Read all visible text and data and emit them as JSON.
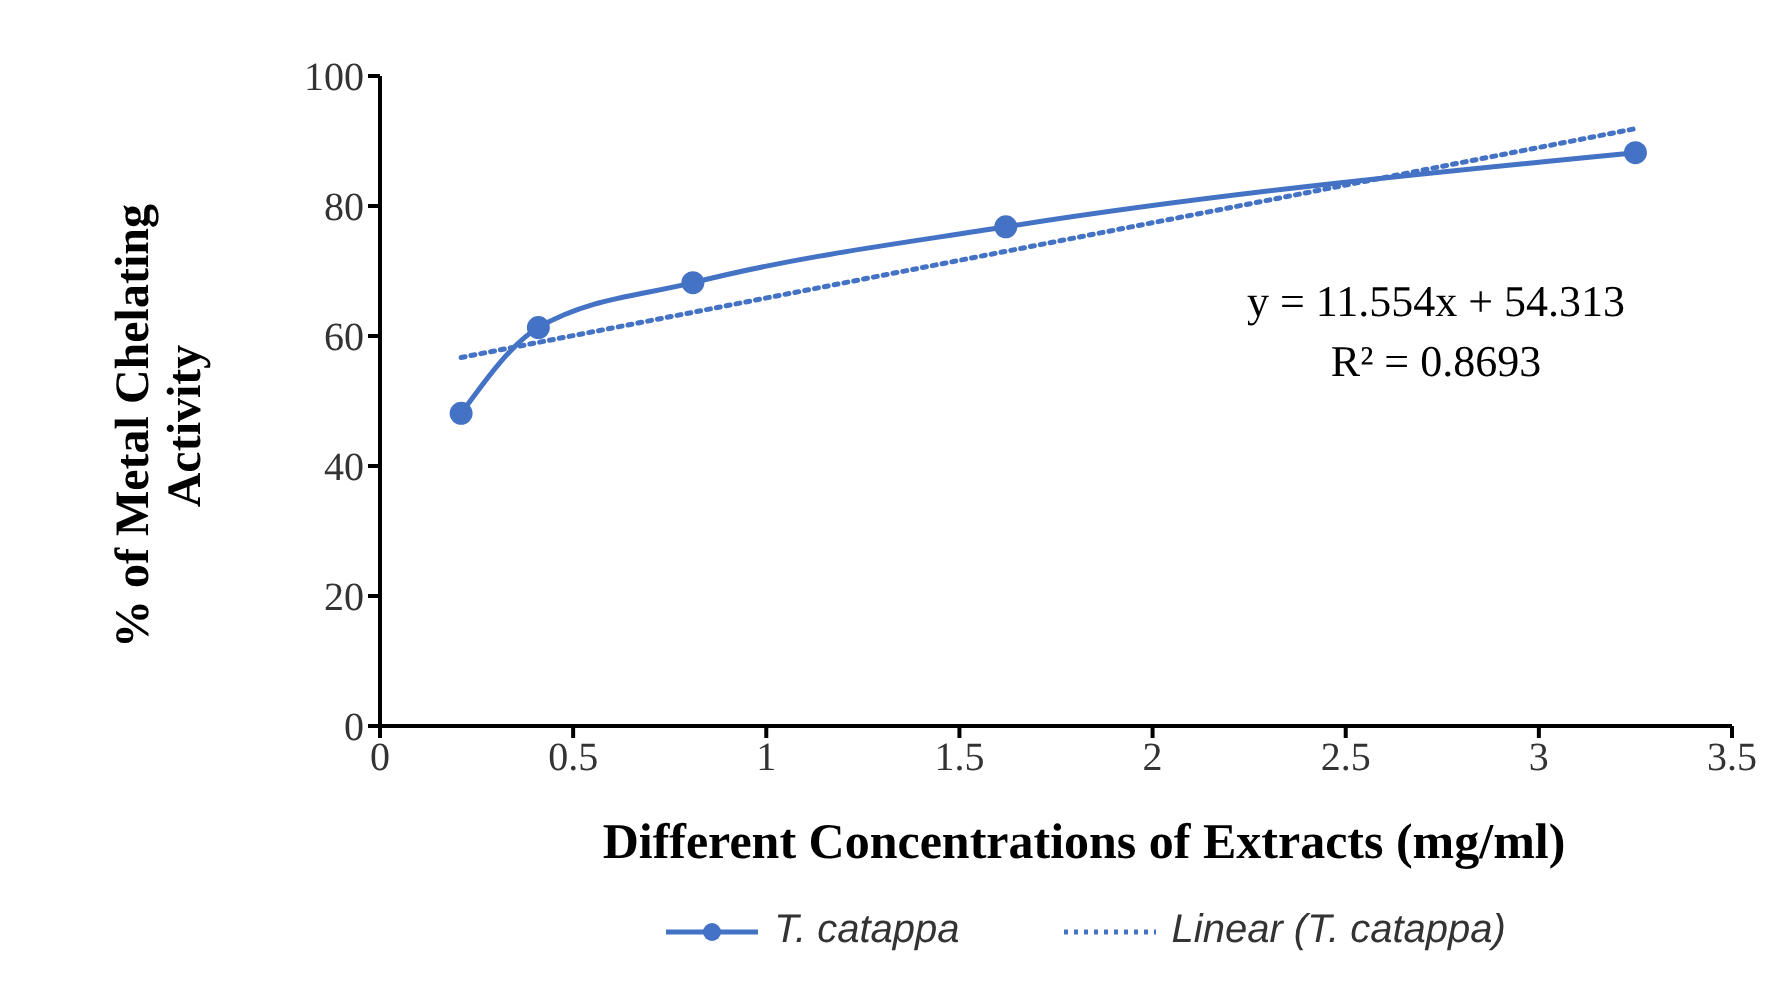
{
  "chart_data": {
    "type": "line",
    "xlabel": "Different Concentrations of Extracts (mg/ml)",
    "ylabel": "% of Metal Chelating Activity",
    "xlim": [
      0,
      3.5
    ],
    "xticks": [
      0,
      0.5,
      1,
      1.5,
      2,
      2.5,
      3,
      3.5
    ],
    "ylim": [
      0,
      100
    ],
    "yticks": [
      0,
      20,
      40,
      60,
      80,
      100
    ],
    "legend": "bottom",
    "series": [
      {
        "name": "T. catappa",
        "color": "#4472c4",
        "x": [
          0.21,
          0.41,
          0.81,
          1.62,
          3.25
        ],
        "values": [
          48.1,
          61.3,
          68.2,
          76.8,
          88.2
        ],
        "marker": "circle",
        "line_style": "solid"
      },
      {
        "name": "Linear (T. catappa)",
        "color": "#4472c4",
        "x": [
          0.21,
          3.25
        ],
        "values": [
          56.7,
          91.9
        ],
        "marker": "none",
        "line_style": "dotted"
      }
    ],
    "annotations": [
      "y = 11.554x + 54.313",
      "R² = 0.8693"
    ]
  }
}
